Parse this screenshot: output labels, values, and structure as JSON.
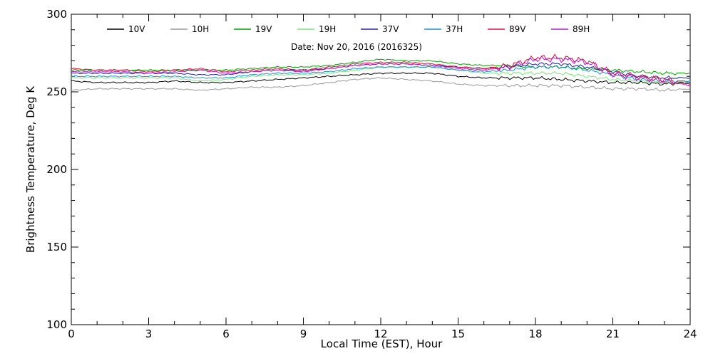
{
  "chart_data": {
    "type": "line",
    "title": "",
    "annotation": "Date: Nov 20, 2016 (2016325)",
    "xlabel": "Local Time (EST), Hour",
    "ylabel": "Brightness Temperature, Deg K",
    "xlim": [
      0,
      24
    ],
    "ylim": [
      100,
      300
    ],
    "xticks": [
      0,
      3,
      6,
      9,
      12,
      15,
      18,
      21,
      24
    ],
    "yticks": [
      100,
      150,
      200,
      250,
      300
    ],
    "grid": false,
    "legend": "top",
    "series": [
      {
        "name": "10V",
        "color": "#000000",
        "x": [
          0,
          1,
          2,
          3,
          4,
          5,
          6,
          7,
          8,
          9,
          10,
          11,
          12,
          13,
          14,
          15,
          16,
          17,
          18,
          19,
          20,
          21,
          22,
          23,
          24
        ],
        "y": [
          257,
          256,
          256,
          256,
          257,
          256,
          256,
          257,
          258,
          259,
          260,
          261,
          262,
          262,
          262,
          260,
          259,
          259,
          259,
          258,
          257,
          256,
          256,
          255,
          256
        ]
      },
      {
        "name": "10H",
        "color": "#999999",
        "x": [
          0,
          1,
          2,
          3,
          4,
          5,
          6,
          7,
          8,
          9,
          10,
          11,
          12,
          13,
          14,
          15,
          16,
          17,
          18,
          19,
          20,
          21,
          22,
          23,
          24
        ],
        "y": [
          251,
          252,
          252,
          252,
          252,
          251,
          252,
          253,
          253,
          254,
          256,
          258,
          259,
          258,
          257,
          255,
          254,
          254,
          254,
          254,
          253,
          252,
          252,
          251,
          252
        ]
      },
      {
        "name": "19V",
        "color": "#00a000",
        "x": [
          0,
          1,
          2,
          3,
          4,
          5,
          6,
          7,
          8,
          9,
          10,
          11,
          12,
          13,
          14,
          15,
          16,
          17,
          18,
          19,
          20,
          21,
          22,
          23,
          24
        ],
        "y": [
          264,
          264,
          264,
          264,
          264,
          264,
          264,
          265,
          266,
          266,
          267,
          269,
          271,
          270,
          270,
          268,
          267,
          267,
          266,
          266,
          265,
          264,
          263,
          262,
          262
        ]
      },
      {
        "name": "19H",
        "color": "#7fe07f",
        "x": [
          0,
          1,
          2,
          3,
          4,
          5,
          6,
          7,
          8,
          9,
          10,
          11,
          12,
          13,
          14,
          15,
          16,
          17,
          18,
          19,
          20,
          21,
          22,
          23,
          24
        ],
        "y": [
          259,
          259,
          259,
          259,
          259,
          257,
          258,
          260,
          261,
          261,
          262,
          264,
          266,
          266,
          266,
          264,
          262,
          262,
          262,
          262,
          260,
          258,
          257,
          256,
          257
        ]
      },
      {
        "name": "37V",
        "color": "#2020a0",
        "x": [
          0,
          1,
          2,
          3,
          4,
          5,
          6,
          7,
          8,
          9,
          10,
          11,
          12,
          13,
          14,
          15,
          16,
          17,
          18,
          19,
          20,
          21,
          22,
          23,
          24
        ],
        "y": [
          262,
          262,
          262,
          262,
          262,
          261,
          261,
          263,
          264,
          264,
          265,
          267,
          268,
          268,
          267,
          266,
          265,
          266,
          268,
          268,
          266,
          263,
          260,
          259,
          259
        ]
      },
      {
        "name": "37H",
        "color": "#1e90d0",
        "x": [
          0,
          1,
          2,
          3,
          4,
          5,
          6,
          7,
          8,
          9,
          10,
          11,
          12,
          13,
          14,
          15,
          16,
          17,
          18,
          19,
          20,
          21,
          22,
          23,
          24
        ],
        "y": [
          260,
          260,
          260,
          260,
          260,
          259,
          259,
          261,
          262,
          262,
          263,
          265,
          266,
          266,
          266,
          264,
          263,
          264,
          266,
          266,
          264,
          261,
          258,
          257,
          257
        ]
      },
      {
        "name": "89V",
        "color": "#e0103c",
        "x": [
          0,
          1,
          2,
          3,
          4,
          5,
          6,
          7,
          8,
          9,
          10,
          11,
          12,
          13,
          14,
          15,
          16,
          17,
          18,
          19,
          20,
          21,
          22,
          23,
          24
        ],
        "y": [
          265,
          264,
          264,
          263,
          264,
          265,
          263,
          264,
          265,
          264,
          266,
          268,
          269,
          269,
          268,
          266,
          265,
          267,
          272,
          272,
          270,
          262,
          260,
          258,
          255
        ]
      },
      {
        "name": "89H",
        "color": "#b020c8",
        "x": [
          0,
          1,
          2,
          3,
          4,
          5,
          6,
          7,
          8,
          9,
          10,
          11,
          12,
          13,
          14,
          15,
          16,
          17,
          18,
          19,
          20,
          21,
          22,
          23,
          24
        ],
        "y": [
          263,
          263,
          263,
          262,
          263,
          264,
          262,
          263,
          264,
          263,
          265,
          267,
          268,
          268,
          267,
          265,
          264,
          266,
          271,
          271,
          269,
          261,
          259,
          257,
          254
        ]
      }
    ]
  }
}
